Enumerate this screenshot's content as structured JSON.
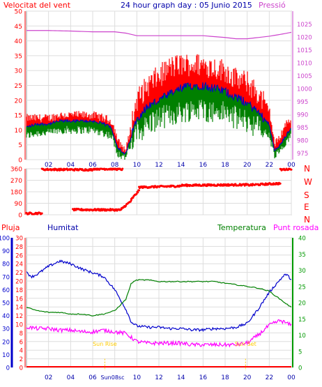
{
  "header": {
    "left_label": "Velocitat del vent",
    "center_label": "24 hour graph day : 05 Junio 2015",
    "right_label": "Pressió"
  },
  "colors": {
    "wind_max": "#ff0000",
    "wind_avg": "#0000cc",
    "wind_min": "#008000",
    "pressure": "#cc44cc",
    "direction": "#ff0000",
    "rain": "#ff0000",
    "humidity": "#0000cc",
    "temperature": "#008000",
    "dewpoint": "#ff00ff",
    "sun_marker": "#ffcc00",
    "axis_green": "#009900"
  },
  "chart_data": [
    {
      "type": "line",
      "name": "wind-pressure",
      "x_ticks": [
        "02",
        "04",
        "06",
        "08",
        "10",
        "12",
        "14",
        "16",
        "18",
        "20",
        "22",
        "00"
      ],
      "y_left_ticks": [
        0,
        5,
        10,
        15,
        20,
        25,
        30,
        35,
        40,
        45,
        50
      ],
      "y_left_range": [
        0,
        50
      ],
      "y_right_ticks": [
        975,
        980,
        985,
        990,
        995,
        1000,
        1005,
        1010,
        1015,
        1020,
        1025
      ],
      "y_right_range": [
        972.5,
        1030
      ],
      "grid": true,
      "series": [
        {
          "key": "max",
          "x": [
            0,
            1,
            2,
            3,
            4,
            5,
            6,
            7,
            7.7,
            8,
            8.3,
            8.8,
            9,
            10,
            11,
            12,
            13,
            14,
            15,
            16,
            17,
            18,
            19,
            20,
            21,
            22,
            22.5,
            23,
            23.5,
            24
          ],
          "values": [
            14,
            14,
            14,
            15,
            15,
            15,
            15,
            14,
            13,
            10,
            6,
            4,
            3,
            20,
            25,
            28,
            31,
            32,
            32,
            32,
            31,
            30,
            27,
            26,
            22,
            17,
            5,
            8,
            12,
            14
          ]
        },
        {
          "key": "avg",
          "x": [
            0,
            1,
            2,
            3,
            4,
            5,
            6,
            7,
            7.7,
            8,
            8.3,
            8.8,
            9,
            10,
            11,
            12,
            13,
            14,
            15,
            16,
            17,
            18,
            19,
            20,
            21,
            22,
            22.5,
            23,
            23.5,
            24
          ],
          "values": [
            11,
            12,
            12,
            13,
            13,
            13,
            13,
            12,
            11,
            7,
            4,
            2,
            2,
            14,
            18,
            20,
            22,
            24,
            25,
            25,
            24,
            23,
            21,
            19,
            16,
            12,
            3,
            5,
            8,
            11
          ]
        },
        {
          "key": "min",
          "x": [
            0,
            1,
            2,
            3,
            4,
            5,
            6,
            7,
            7.7,
            8,
            8.3,
            8.8,
            9,
            10,
            11,
            12,
            13,
            14,
            15,
            16,
            17,
            18,
            19,
            20,
            21,
            22,
            22.5,
            23,
            23.5,
            24
          ],
          "values": [
            8,
            9,
            9,
            10,
            10,
            10,
            10,
            9,
            8,
            5,
            2,
            1,
            1,
            9,
            12,
            14,
            15,
            16,
            17,
            17,
            16,
            16,
            14,
            13,
            11,
            8,
            1,
            3,
            5,
            8
          ]
        },
        {
          "key": "pressure",
          "x": [
            0,
            2,
            4,
            6,
            8,
            9,
            10,
            12,
            14,
            16,
            18,
            19,
            20,
            21,
            22,
            23,
            24
          ],
          "values": [
            1022.5,
            1022.5,
            1022.3,
            1022,
            1022,
            1021.5,
            1020.5,
            1020.5,
            1020.5,
            1020.5,
            1019.8,
            1019.3,
            1019.3,
            1019.8,
            1020.3,
            1021,
            1021.8
          ]
        }
      ]
    },
    {
      "type": "scatter",
      "name": "wind-direction",
      "right_labels": [
        "N",
        "W",
        "S",
        "E",
        "N"
      ],
      "y_ticks": [
        0,
        90,
        180,
        270,
        360
      ],
      "y_range": [
        0,
        360
      ],
      "segments": [
        {
          "x0": 0.0,
          "x1": 1.4,
          "y0": 10,
          "y1": 12
        },
        {
          "x0": 1.4,
          "x1": 6.0,
          "y0": 355,
          "y1": 352
        },
        {
          "x0": 6.0,
          "x1": 7.6,
          "y0": 360,
          "y1": 358
        },
        {
          "x0": 7.6,
          "x1": 8.7,
          "y0": 360,
          "y1": 355
        },
        {
          "x0": 4.2,
          "x1": 8.6,
          "y0": 40,
          "y1": 38
        },
        {
          "x0": 8.6,
          "x1": 9.5,
          "y0": 45,
          "y1": 110
        },
        {
          "x0": 9.5,
          "x1": 10.2,
          "y0": 120,
          "y1": 190
        },
        {
          "x0": 10.2,
          "x1": 14.0,
          "y0": 215,
          "y1": 225
        },
        {
          "x0": 14.0,
          "x1": 20.0,
          "y0": 230,
          "y1": 235
        },
        {
          "x0": 20.0,
          "x1": 23.0,
          "y0": 232,
          "y1": 245
        },
        {
          "x0": 23.0,
          "x1": 24.0,
          "y0": 352,
          "y1": 360
        }
      ]
    },
    {
      "type": "line",
      "name": "humidity-temperature",
      "legend": [
        "Pluja",
        "Humitat",
        "Temperatura",
        "Punt rosada"
      ],
      "y_rain_ticks": [
        0,
        2,
        4,
        6,
        8,
        10,
        12,
        14,
        16,
        18,
        20,
        22,
        24,
        26,
        28,
        30
      ],
      "y_rain_range": [
        0,
        30
      ],
      "y_hum_ticks": [
        0,
        10,
        20,
        30,
        40,
        50,
        60,
        70,
        80,
        90,
        100
      ],
      "y_hum_range": [
        0,
        100
      ],
      "y_temp_ticks": [
        0,
        5,
        10,
        15,
        20,
        25,
        30,
        35,
        40
      ],
      "y_temp_range": [
        0,
        40
      ],
      "x_ticks": [
        "02",
        "04",
        "06",
        "08",
        "10",
        "12",
        "14",
        "16",
        "18",
        "20",
        "22",
        "00"
      ],
      "grid": true,
      "annotations": [
        "Sun Rise",
        "Sun Set",
        "Sun08sc"
      ],
      "series": [
        {
          "key": "humidity",
          "x": [
            0,
            0.5,
            1,
            2,
            3,
            4,
            5,
            6,
            7,
            8,
            9,
            9.5,
            10,
            11,
            12,
            13,
            14,
            15,
            16,
            17,
            18,
            19,
            20,
            21,
            22,
            23,
            23.5,
            24
          ],
          "values": [
            73,
            70,
            72,
            78,
            82,
            80,
            76,
            73,
            70,
            60,
            45,
            35,
            32,
            31,
            31,
            30,
            30,
            29,
            29,
            30,
            30,
            31,
            34,
            45,
            58,
            68,
            72,
            68
          ]
        },
        {
          "key": "temperature",
          "x": [
            0,
            1,
            2,
            3,
            4,
            5,
            6,
            7,
            8,
            9,
            9.5,
            10,
            11,
            12,
            13,
            14,
            15,
            16,
            17,
            18,
            19,
            20,
            21,
            22,
            23,
            24
          ],
          "values": [
            18.5,
            17.5,
            17,
            17,
            16.5,
            16.5,
            16,
            16.5,
            17.5,
            21,
            26,
            27,
            27,
            26.5,
            26.5,
            26.5,
            26.5,
            26.5,
            26.5,
            26,
            25.5,
            25,
            24.5,
            23.5,
            21,
            18.5
          ]
        },
        {
          "key": "dewpoint",
          "x": [
            0,
            1,
            2,
            3,
            4,
            5,
            6,
            7,
            8,
            9,
            10,
            11,
            12,
            13,
            14,
            15,
            16,
            17,
            18,
            19,
            20,
            21,
            22,
            23,
            24
          ],
          "values": [
            12.5,
            12,
            12,
            11.5,
            11.5,
            11,
            11,
            11.5,
            11,
            10.5,
            8,
            7.5,
            7.5,
            7.5,
            7.5,
            7,
            7,
            7,
            7,
            7,
            7.5,
            10,
            13,
            14.5,
            13
          ]
        },
        {
          "key": "rain",
          "x": [
            0,
            24
          ],
          "values": [
            0,
            0
          ]
        }
      ]
    }
  ]
}
